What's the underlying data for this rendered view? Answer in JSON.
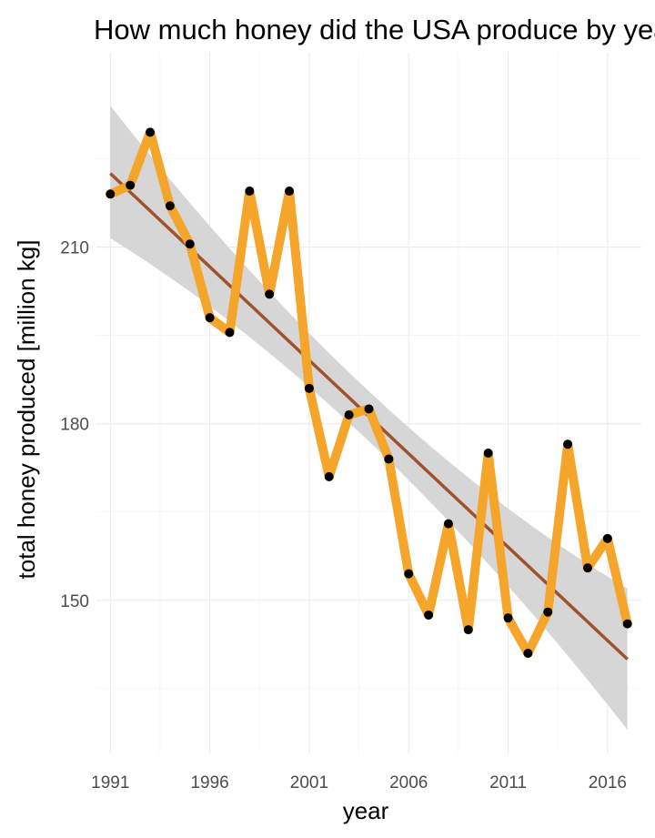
{
  "chart_data": {
    "type": "line",
    "title": "How much honey did the USA produce by year?",
    "xlabel": "year",
    "ylabel": "total honey produced [million kg]",
    "x_ticks": [
      1991,
      1996,
      2001,
      2006,
      2011,
      2016
    ],
    "y_ticks": [
      150,
      180,
      210
    ],
    "xlim": [
      1990.3,
      2017.7
    ],
    "ylim": [
      124,
      243
    ],
    "grid": true,
    "legend": "none",
    "series": [
      {
        "x": [
          1991,
          1992,
          1993,
          1994,
          1995,
          1996,
          1997,
          1998,
          1999,
          2000,
          2001,
          2002,
          2003,
          2004,
          2005,
          2006,
          2007,
          2008,
          2009,
          2010,
          2011,
          2012,
          2013,
          2014,
          2015,
          2016,
          2017
        ],
        "y": [
          219.0,
          220.5,
          229.5,
          217.0,
          210.5,
          198.0,
          195.5,
          219.5,
          202.0,
          219.5,
          186.0,
          171.0,
          181.5,
          182.5,
          174.0,
          154.5,
          147.5,
          163.0,
          145.0,
          175.0,
          147.0,
          141.0,
          148.0,
          176.5,
          155.5,
          160.5,
          146.0
        ],
        "color": "#f5a52a"
      }
    ],
    "trend": {
      "x_start": 1991,
      "y_start": 222.5,
      "x_end": 2017,
      "y_end": 140.0,
      "ci_lower_start": 211.5,
      "ci_upper_start": 234.0,
      "ci_lower_mid": 177.0,
      "ci_upper_mid": 185.5,
      "ci_lower_end": 128.0,
      "ci_upper_end": 152.0,
      "color": "#a0522d",
      "ci_color": "#d6d6d6"
    }
  }
}
